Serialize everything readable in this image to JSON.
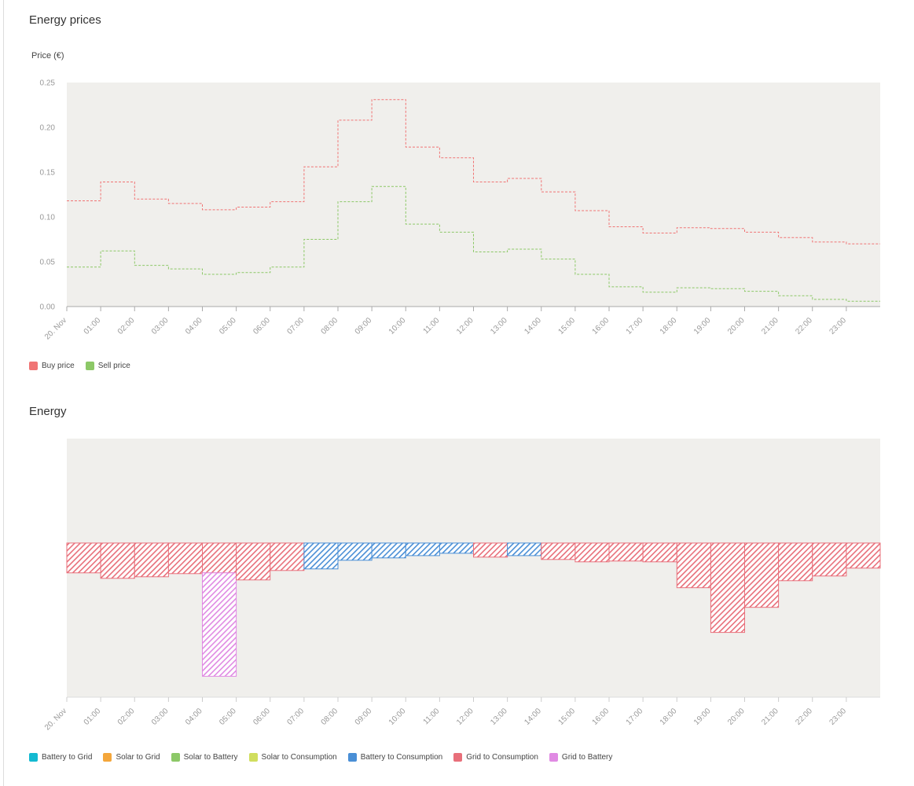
{
  "sections": {
    "prices_title": "Energy prices",
    "energy_title": "Energy"
  },
  "chart_data": [
    {
      "type": "line",
      "step": true,
      "title": "Energy prices",
      "ylabel": "Price (€)",
      "xlabel": "",
      "ylim": [
        0,
        0.25
      ],
      "y_ticks": [
        "0.00",
        "0.05",
        "0.10",
        "0.15",
        "0.20",
        "0.25"
      ],
      "x_tick_labels": [
        "20. Nov",
        "01:00",
        "02:00",
        "03:00",
        "04:00",
        "05:00",
        "06:00",
        "07:00",
        "08:00",
        "09:00",
        "10:00",
        "11:00",
        "12:00",
        "13:00",
        "14:00",
        "15:00",
        "16:00",
        "17:00",
        "18:00",
        "19:00",
        "20:00",
        "21:00",
        "22:00",
        "23:00"
      ],
      "series": [
        {
          "name": "Buy price",
          "color": "#f07474",
          "values": [
            0.118,
            0.139,
            0.12,
            0.115,
            0.108,
            0.111,
            0.117,
            0.156,
            0.208,
            0.231,
            0.178,
            0.166,
            0.139,
            0.143,
            0.128,
            0.107,
            0.089,
            0.082,
            0.088,
            0.087,
            0.083,
            0.077,
            0.072,
            0.07
          ]
        },
        {
          "name": "Sell price",
          "color": "#8cc867",
          "values": [
            0.044,
            0.062,
            0.046,
            0.042,
            0.036,
            0.038,
            0.044,
            0.075,
            0.117,
            0.134,
            0.092,
            0.083,
            0.061,
            0.064,
            0.053,
            0.036,
            0.022,
            0.016,
            0.021,
            0.02,
            0.017,
            0.012,
            0.008,
            0.006
          ]
        }
      ],
      "grid": false,
      "legend": "bottom-left",
      "background": "#f0efec"
    },
    {
      "type": "bar",
      "stacked": true,
      "title": "Energy",
      "ylabel": "",
      "xlabel": "",
      "ylim": [
        -5.9,
        4.0
      ],
      "x_tick_labels": [
        "20. Nov",
        "01:00",
        "02:00",
        "03:00",
        "04:00",
        "05:00",
        "06:00",
        "07:00",
        "08:00",
        "09:00",
        "10:00",
        "11:00",
        "12:00",
        "13:00",
        "14:00",
        "15:00",
        "16:00",
        "17:00",
        "18:00",
        "19:00",
        "20:00",
        "21:00",
        "22:00",
        "23:00"
      ],
      "series": [
        {
          "name": "Battery to Grid",
          "color": "#13b9d1",
          "values": [
            0,
            0,
            0,
            0,
            0,
            0,
            0,
            0,
            0,
            0,
            0,
            0,
            0,
            0,
            0,
            0,
            0,
            0,
            0,
            0,
            0,
            0,
            0,
            0
          ]
        },
        {
          "name": "Solar to Grid",
          "color": "#f4a63b",
          "values": [
            0,
            0,
            0,
            0,
            0,
            0,
            0,
            0,
            0,
            0,
            0,
            0,
            0,
            0,
            0,
            0,
            0,
            0,
            0,
            0,
            0,
            0,
            0,
            0
          ]
        },
        {
          "name": "Solar to Battery",
          "color": "#8cc867",
          "values": [
            0,
            0,
            0,
            0,
            0,
            0,
            0,
            0,
            0,
            0,
            0,
            0,
            0,
            0,
            0,
            0,
            0,
            0,
            0,
            0,
            0,
            0,
            0,
            0
          ]
        },
        {
          "name": "Solar to Consumption",
          "color": "#d0de5e",
          "values": [
            0,
            0,
            0,
            0,
            0,
            0,
            0,
            0,
            0,
            0,
            0,
            0,
            0,
            0,
            0,
            0,
            0,
            0,
            0,
            0,
            0,
            0,
            0,
            0
          ]
        },
        {
          "name": "Battery to Consumption",
          "color": "#4a8fd6",
          "values": [
            0,
            0,
            0,
            0,
            0,
            0,
            0,
            -0.99,
            -0.66,
            -0.57,
            -0.48,
            -0.39,
            0,
            -0.48,
            0,
            0,
            0,
            0,
            0,
            0,
            0,
            0,
            0,
            0
          ]
        },
        {
          "name": "Grid to Consumption",
          "color": "#e86f7a",
          "values": [
            -1.14,
            -1.35,
            -1.29,
            -1.17,
            -1.14,
            -1.41,
            -1.05,
            0,
            0,
            0,
            0,
            0,
            -0.54,
            0,
            -0.63,
            -0.72,
            -0.69,
            -0.72,
            -1.71,
            -3.42,
            -2.46,
            -1.44,
            -1.26,
            -0.96
          ]
        },
        {
          "name": "Grid to Battery",
          "color": "#e08ae3",
          "values": [
            0,
            0,
            0,
            0,
            -3.96,
            0,
            0,
            0,
            0,
            0,
            0,
            0,
            0,
            0,
            0,
            0,
            0,
            0,
            0,
            0,
            0,
            0,
            0,
            0
          ]
        }
      ],
      "grid": false,
      "legend": "bottom-left",
      "background": "#f0efec"
    }
  ]
}
